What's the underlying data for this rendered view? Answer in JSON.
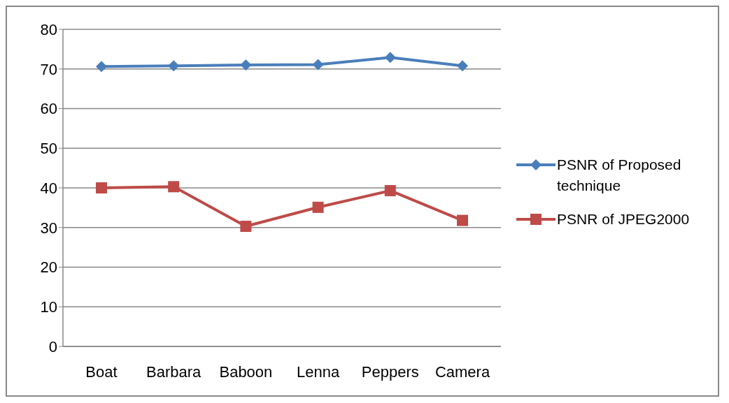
{
  "chart_data": {
    "type": "line",
    "categories": [
      "Boat",
      "Barbara",
      "Baboon",
      "Lenna",
      "Peppers",
      "Camera"
    ],
    "series": [
      {
        "name": "PSNR of Proposed technique",
        "color": "#4a7ebb",
        "marker": "diamond",
        "values": [
          70.6,
          70.8,
          71.0,
          71.1,
          72.9,
          70.8
        ]
      },
      {
        "name": "PSNR of JPEG2000",
        "color": "#be4b48",
        "marker": "square",
        "values": [
          40.0,
          40.3,
          30.3,
          35.1,
          39.3,
          31.8
        ]
      }
    ],
    "ylim": [
      0,
      80
    ],
    "yticks": [
      0,
      10,
      20,
      30,
      40,
      50,
      60,
      70,
      80
    ],
    "grid": "y",
    "legend": "right",
    "line_style": "solid"
  }
}
